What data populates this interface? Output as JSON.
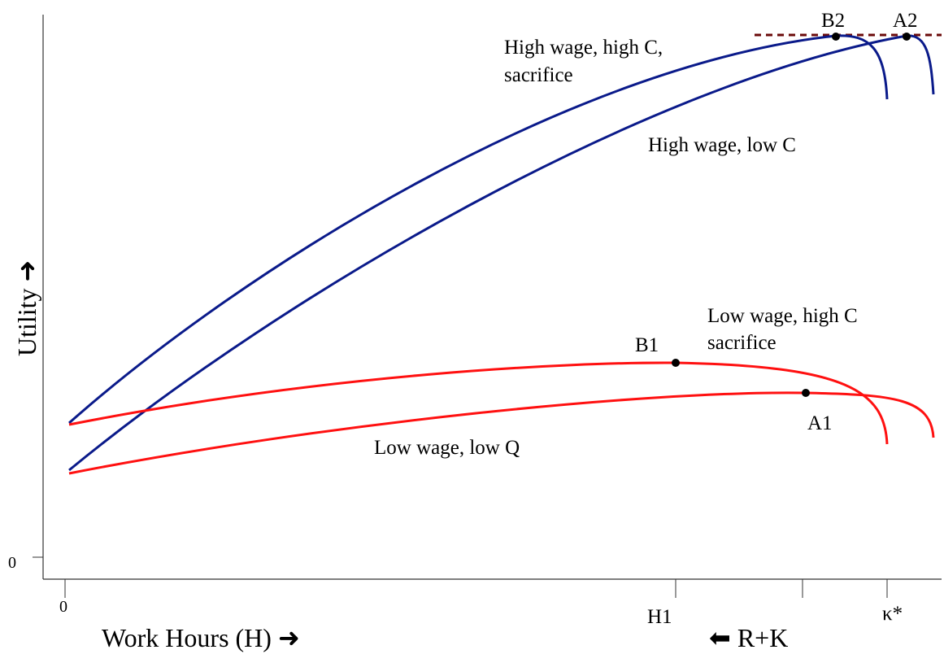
{
  "axes": {
    "y_label": "Utility ➜",
    "x_label": "Work Hours (H) ➜",
    "x_label_right": "⬅ R+K"
  },
  "ticks": {
    "y_zero": "0",
    "x_zero": "0",
    "h1": "H1",
    "kappa": "κ*"
  },
  "points": [
    "B2",
    "A2",
    "B1",
    "A1"
  ],
  "curves": [
    {
      "label": [
        "High wage, high C,",
        "sacrifice"
      ]
    },
    {
      "label": [
        "High wage, low C"
      ]
    },
    {
      "label": [
        "Low wage, high C",
        "sacrifice"
      ]
    },
    {
      "label": [
        "Low wage, low Q"
      ]
    }
  ]
}
